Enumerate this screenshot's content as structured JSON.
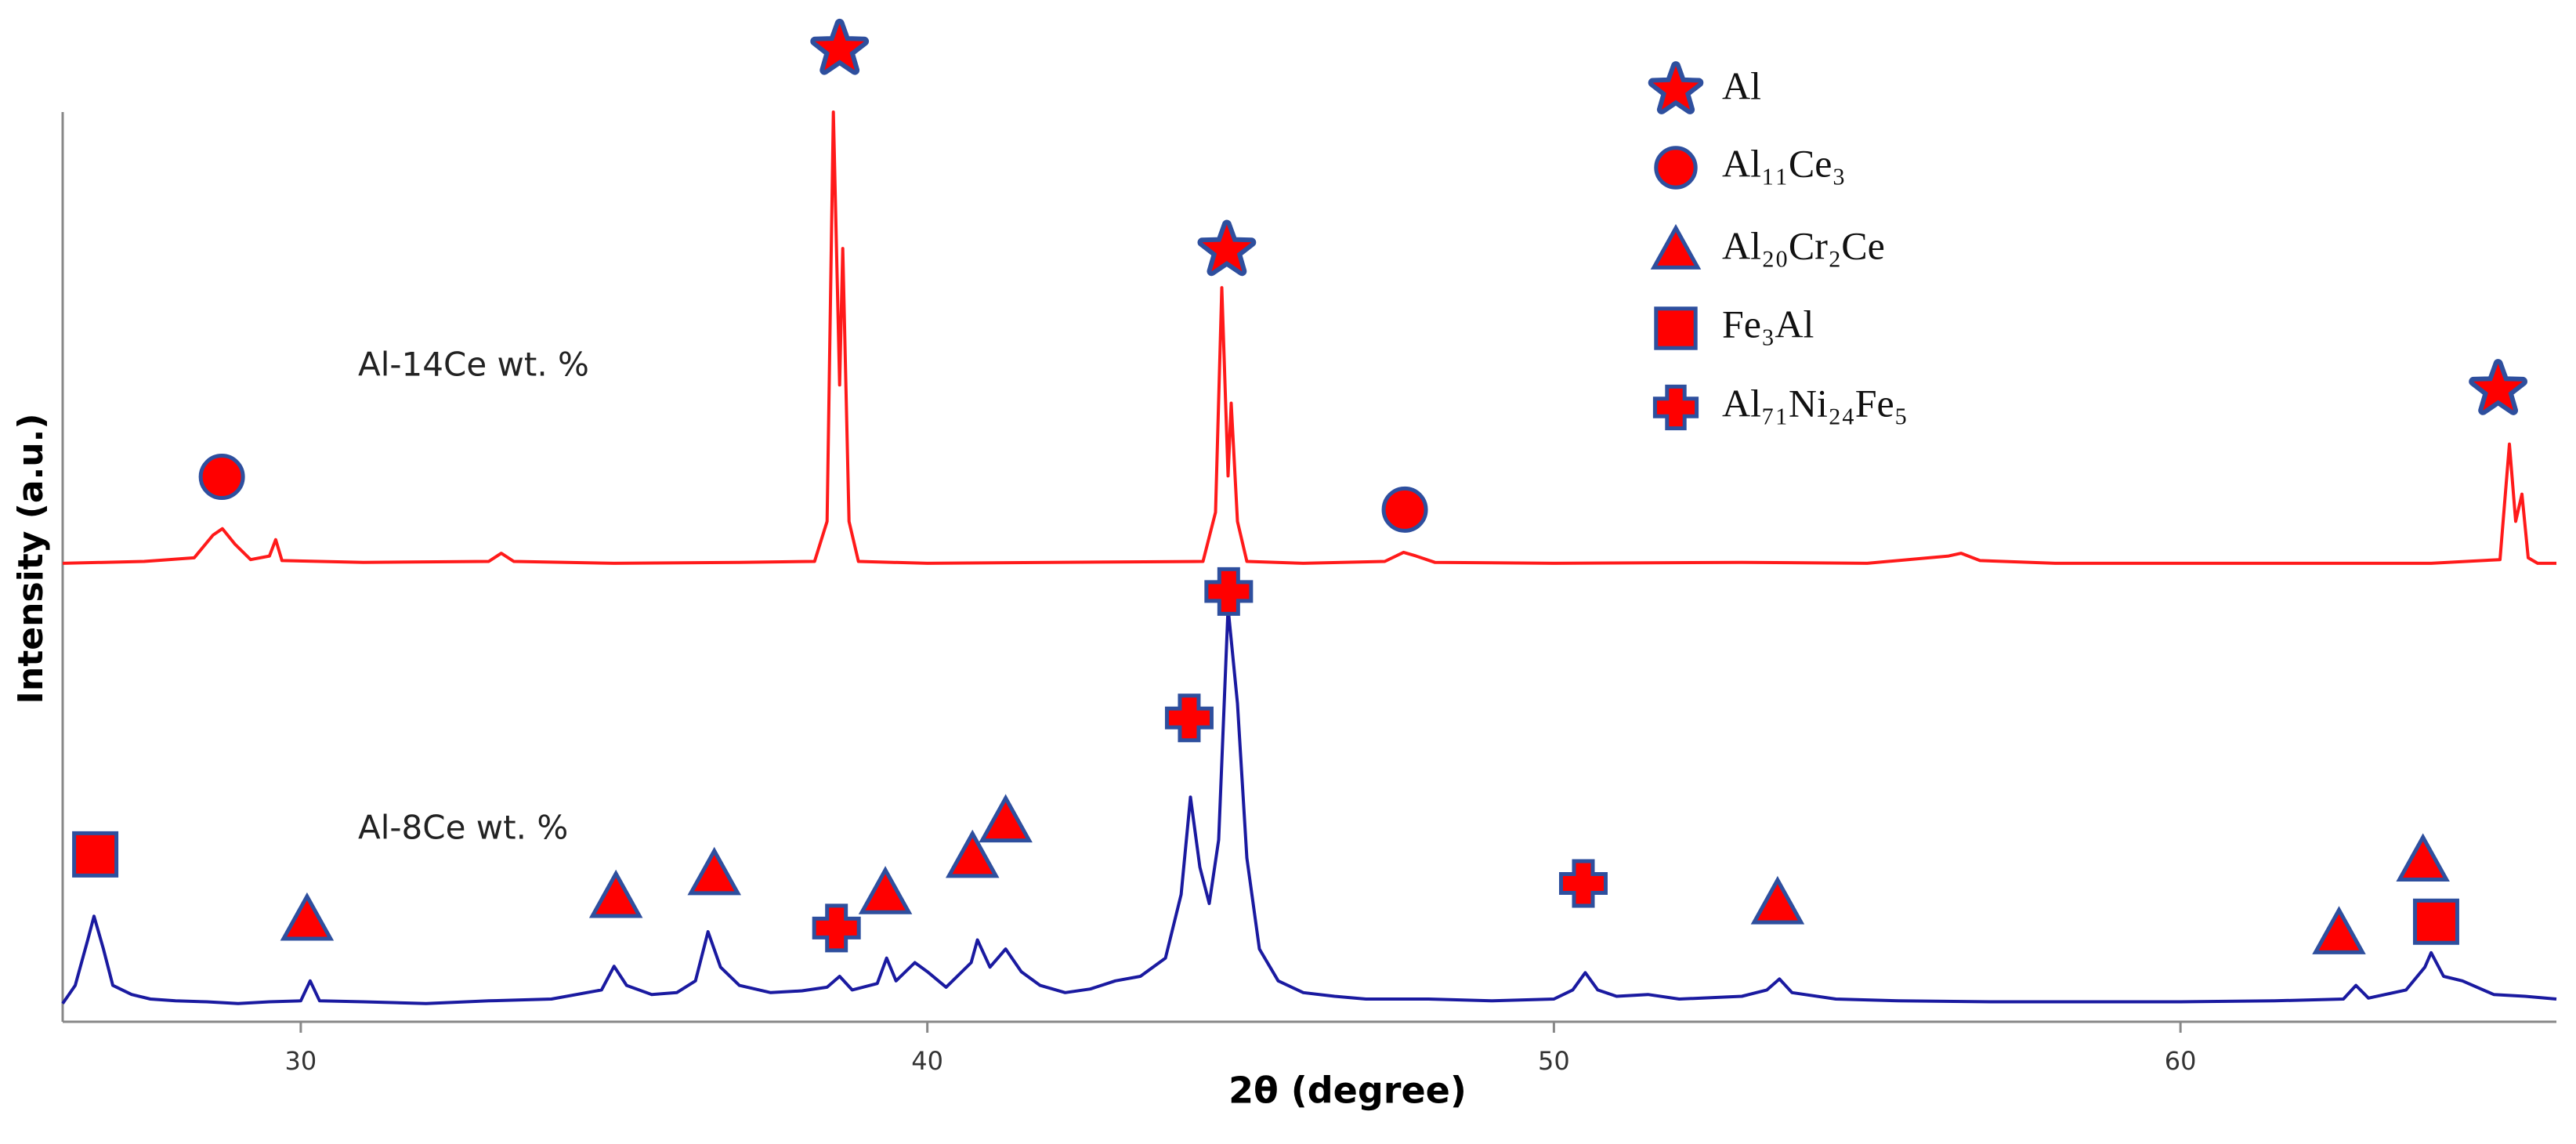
{
  "chart_data": {
    "type": "line",
    "xlabel": "2θ (degree)",
    "ylabel": "Intensity (a.u.)",
    "xlim": [
      26.2,
      66
    ],
    "xticks": [
      30,
      40,
      50,
      60
    ],
    "ylim": [
      0,
      100
    ],
    "series": [
      {
        "name": "Al-14Ce wt. %",
        "color": "#ff1a1a",
        "x": [
          26.2,
          27.5,
          28.3,
          28.6,
          28.75,
          28.95,
          29.2,
          29.5,
          29.6,
          29.7,
          31,
          33,
          33.2,
          33.4,
          35,
          37,
          38.2,
          38.4,
          38.5,
          38.6,
          38.65,
          38.75,
          38.9,
          40,
          42,
          44.4,
          44.6,
          44.7,
          44.8,
          44.85,
          44.95,
          45.1,
          46,
          47.3,
          47.6,
          47.8,
          48.1,
          50,
          53,
          55,
          56.3,
          56.5,
          56.8,
          58,
          62,
          64,
          65.1,
          65.25,
          65.35,
          65.45,
          65.55,
          65.7,
          66
        ],
        "values": [
          50.4,
          50.6,
          51,
          53.5,
          54.2,
          52.5,
          50.8,
          51.2,
          53,
          50.7,
          50.5,
          50.6,
          51.5,
          50.6,
          50.4,
          50.5,
          50.6,
          55,
          100,
          70,
          85,
          55,
          50.6,
          50.4,
          50.5,
          50.6,
          56,
          80.7,
          60,
          68,
          55,
          50.6,
          50.4,
          50.6,
          51.6,
          51.2,
          50.5,
          50.4,
          50.5,
          50.4,
          51.2,
          51.5,
          50.7,
          50.4,
          50.4,
          50.4,
          50.8,
          63.5,
          55,
          58,
          51,
          50.4,
          50.4
        ]
      },
      {
        "name": "Al-8Ce wt. %",
        "color": "#1a1aa0",
        "x": [
          26.2,
          26.4,
          26.6,
          26.7,
          26.85,
          27,
          27.3,
          27.6,
          28,
          28.5,
          29,
          29.5,
          30,
          30.15,
          30.3,
          31,
          32,
          33,
          34,
          34.8,
          35,
          35.2,
          35.6,
          36,
          36.3,
          36.5,
          36.7,
          37,
          37.5,
          38,
          38.4,
          38.6,
          38.8,
          39.2,
          39.35,
          39.5,
          39.8,
          40,
          40.3,
          40.7,
          40.8,
          41,
          41.25,
          41.5,
          41.8,
          42.2,
          42.6,
          43,
          43.4,
          43.8,
          44.05,
          44.2,
          44.35,
          44.5,
          44.65,
          44.8,
          44.95,
          45.1,
          45.3,
          45.6,
          46,
          46.5,
          47,
          48,
          49,
          50,
          50.3,
          50.5,
          50.7,
          51,
          51.5,
          52,
          53,
          53.4,
          53.6,
          53.8,
          54.5,
          55.5,
          57,
          58.5,
          60,
          61.5,
          62.6,
          62.8,
          63,
          63.6,
          63.9,
          64,
          64.2,
          64.5,
          65,
          65.5,
          66
        ],
        "values": [
          2,
          4,
          9,
          11.6,
          8,
          4,
          3,
          2.5,
          2.3,
          2.2,
          2,
          2.2,
          2.3,
          4.5,
          2.3,
          2.2,
          2,
          2.3,
          2.5,
          3.5,
          6.1,
          4,
          3,
          3.2,
          4.5,
          9.9,
          6,
          4,
          3.2,
          3.4,
          3.8,
          5,
          3.5,
          4.2,
          7,
          4.5,
          6.5,
          5.5,
          3.8,
          6.5,
          9,
          6,
          8,
          5.5,
          4,
          3.2,
          3.6,
          4.5,
          5,
          7,
          14,
          24.7,
          17,
          13,
          20,
          45.5,
          35,
          18,
          8,
          4.5,
          3.2,
          2.8,
          2.5,
          2.5,
          2.3,
          2.5,
          3.5,
          5.4,
          3.5,
          2.8,
          3,
          2.5,
          2.8,
          3.5,
          4.7,
          3.2,
          2.5,
          2.3,
          2.2,
          2.2,
          2.2,
          2.3,
          2.5,
          4,
          2.6,
          3.5,
          6,
          7.6,
          5,
          4.5,
          3,
          2.8,
          2.5
        ]
      }
    ],
    "phases": [
      {
        "name": "Al",
        "symbol": "star",
        "markers": [
          {
            "x": 38.6,
            "y": 106.9
          },
          {
            "x": 44.78,
            "y": 84.8
          },
          {
            "x": 65.07,
            "y": 69.5
          }
        ]
      },
      {
        "name": "Al₁₁Ce₃",
        "symbol": "circle",
        "markers": [
          {
            "x": 28.74,
            "y": 59.9
          },
          {
            "x": 47.62,
            "y": 56.3
          }
        ]
      },
      {
        "name": "Al₂₀Cr₂Ce",
        "symbol": "triangle",
        "markers": [
          {
            "x": 30.1,
            "y": 11.2
          },
          {
            "x": 35.03,
            "y": 13.7
          },
          {
            "x": 36.6,
            "y": 16.2
          },
          {
            "x": 39.33,
            "y": 14.1
          },
          {
            "x": 40.72,
            "y": 18.1
          },
          {
            "x": 41.25,
            "y": 22.0
          },
          {
            "x": 53.57,
            "y": 13.0
          },
          {
            "x": 62.53,
            "y": 9.7
          },
          {
            "x": 63.87,
            "y": 17.7
          }
        ]
      },
      {
        "name": "Fe₃Al",
        "symbol": "square",
        "markers": [
          {
            "x": 26.72,
            "y": 18.4
          },
          {
            "x": 64.08,
            "y": 11.0
          }
        ]
      },
      {
        "name": "Al₇₁Ni₂₄Fe₅",
        "symbol": "plus",
        "markers": [
          {
            "x": 38.55,
            "y": 10.3
          },
          {
            "x": 44.18,
            "y": 33.4
          },
          {
            "x": 44.81,
            "y": 47.3
          },
          {
            "x": 50.47,
            "y": 15.2
          }
        ]
      }
    ],
    "marker_fill": "#ff0000",
    "marker_stroke": "#2e4f9e"
  }
}
